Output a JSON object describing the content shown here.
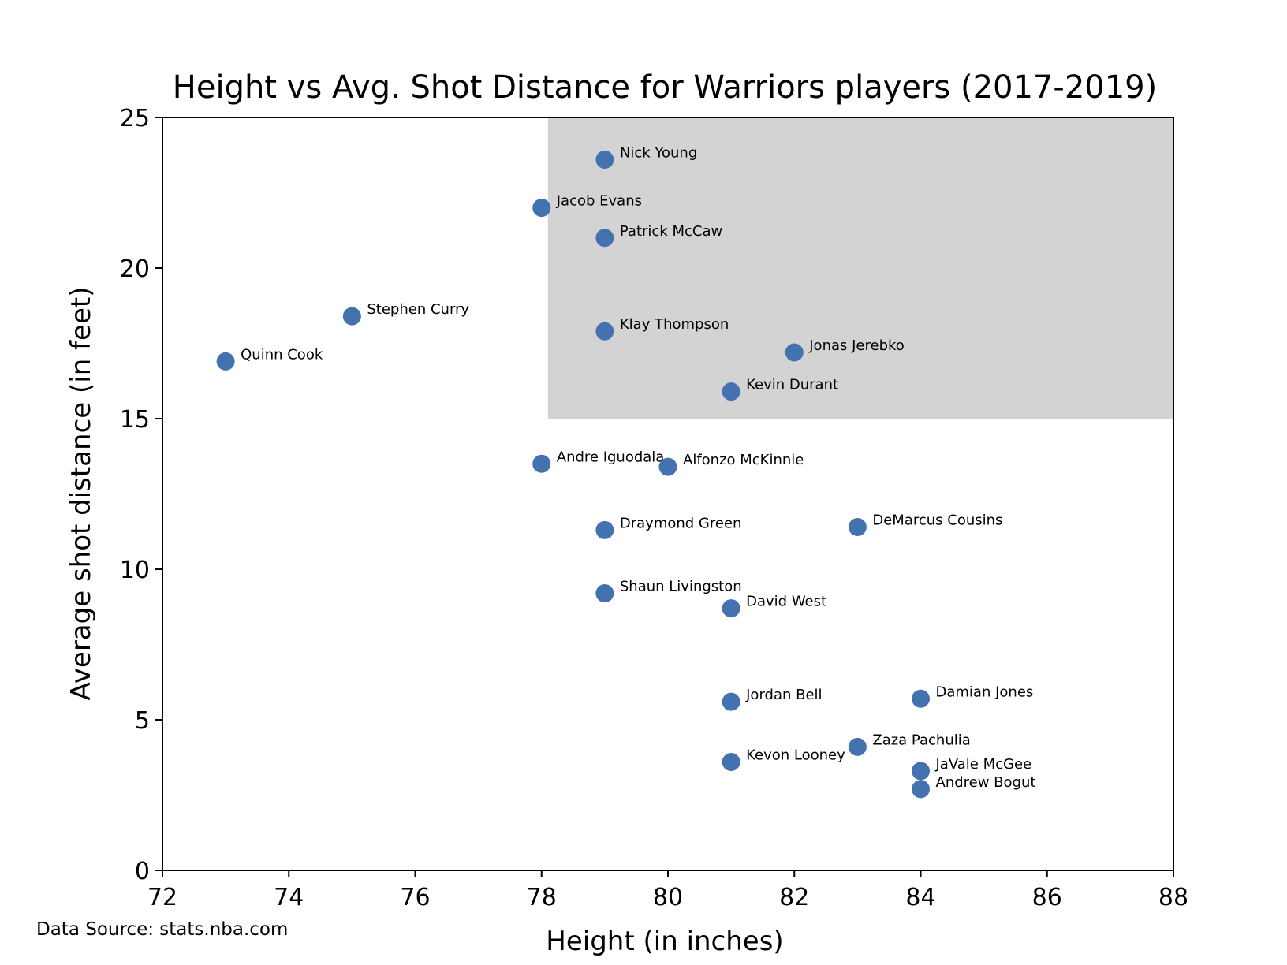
{
  "chart_data": {
    "type": "scatter",
    "title": "Height vs Avg. Shot Distance for Warriors players (2017-2019)",
    "xlabel": "Height (in inches)",
    "ylabel": "Average shot distance (in feet)",
    "xlim": [
      72,
      88
    ],
    "ylim": [
      0,
      25
    ],
    "xticks": [
      72,
      74,
      76,
      78,
      80,
      82,
      84,
      86,
      88
    ],
    "yticks": [
      0,
      5,
      10,
      15,
      20,
      25
    ],
    "grid": false,
    "point_color": "#4472b0",
    "highlight_color": "#d3d3d3",
    "highlight_region": {
      "x": [
        78.1,
        88
      ],
      "y": [
        15,
        25
      ]
    },
    "source": "Data Source: stats.nba.com",
    "points": [
      {
        "name": "Nick Young",
        "x": 79,
        "y": 23.6
      },
      {
        "name": "Jacob Evans",
        "x": 78,
        "y": 22.0
      },
      {
        "name": "Patrick McCaw",
        "x": 79,
        "y": 21.0
      },
      {
        "name": "Stephen Curry",
        "x": 75,
        "y": 18.4
      },
      {
        "name": "Klay Thompson",
        "x": 79,
        "y": 17.9
      },
      {
        "name": "Jonas Jerebko",
        "x": 82,
        "y": 17.2
      },
      {
        "name": "Quinn Cook",
        "x": 73,
        "y": 16.9
      },
      {
        "name": "Kevin Durant",
        "x": 81,
        "y": 15.9
      },
      {
        "name": "Andre Iguodala",
        "x": 78,
        "y": 13.5
      },
      {
        "name": "Alfonzo McKinnie",
        "x": 80,
        "y": 13.4
      },
      {
        "name": "Draymond Green",
        "x": 79,
        "y": 11.3
      },
      {
        "name": "DeMarcus Cousins",
        "x": 83,
        "y": 11.4
      },
      {
        "name": "Shaun Livingston",
        "x": 79,
        "y": 9.2
      },
      {
        "name": "David West",
        "x": 81,
        "y": 8.7
      },
      {
        "name": "Jordan Bell",
        "x": 81,
        "y": 5.6
      },
      {
        "name": "Damian Jones",
        "x": 84,
        "y": 5.7
      },
      {
        "name": "Zaza Pachulia",
        "x": 83,
        "y": 4.1
      },
      {
        "name": "Kevon Looney",
        "x": 81,
        "y": 3.6
      },
      {
        "name": "JaVale McGee",
        "x": 84,
        "y": 3.3
      },
      {
        "name": "Andrew Bogut",
        "x": 84,
        "y": 2.7
      }
    ]
  }
}
